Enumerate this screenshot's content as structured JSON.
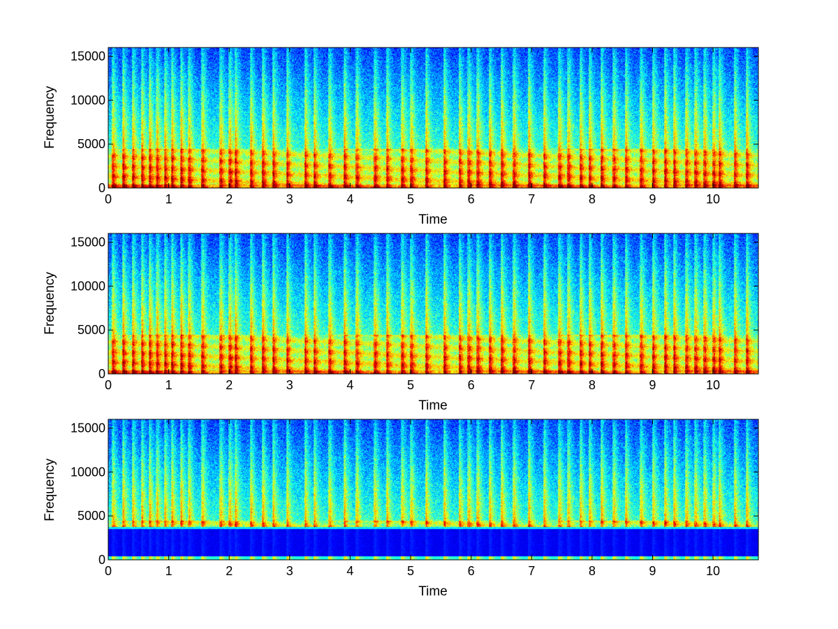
{
  "chart_data": [
    {
      "type": "heatmap",
      "subtype": "spectrogram",
      "colormap": "jet",
      "title": "",
      "xlabel": "Time",
      "ylabel": "Frequency",
      "xlim": [
        0,
        10.75
      ],
      "ylim": [
        0,
        16000
      ],
      "xticks": [
        0,
        1,
        2,
        3,
        4,
        5,
        6,
        7,
        8,
        9,
        10
      ],
      "xtick_labels": [
        "0",
        "1",
        "2",
        "3",
        "4",
        "5",
        "6",
        "7",
        "8",
        "9",
        "10"
      ],
      "yticks": [
        0,
        5000,
        10000,
        15000
      ],
      "ytick_labels": [
        "0",
        "5000",
        "10000",
        "15000"
      ],
      "grid": false,
      "legend": "none",
      "low_band_suppressed": false,
      "band_cutoff_hz": 0,
      "onsets": [
        0.07,
        0.24,
        0.4,
        0.55,
        0.68,
        0.8,
        0.93,
        1.05,
        1.2,
        1.33,
        1.55,
        1.85,
        2.0,
        2.1,
        2.35,
        2.55,
        2.72,
        2.95,
        3.25,
        3.4,
        3.65,
        3.9,
        4.1,
        4.4,
        4.6,
        4.85,
        5.0,
        5.25,
        5.55,
        5.8,
        5.95,
        6.1,
        6.3,
        6.5,
        6.7,
        6.95,
        7.2,
        7.45,
        7.6,
        7.8,
        7.95,
        8.15,
        8.35,
        8.55,
        8.8,
        9.0,
        9.2,
        9.35,
        9.55,
        9.7,
        9.85,
        10.0,
        10.1,
        10.35,
        10.55
      ]
    },
    {
      "type": "heatmap",
      "subtype": "spectrogram",
      "colormap": "jet",
      "title": "",
      "xlabel": "Time",
      "ylabel": "Frequency",
      "xlim": [
        0,
        10.75
      ],
      "ylim": [
        0,
        16000
      ],
      "xticks": [
        0,
        1,
        2,
        3,
        4,
        5,
        6,
        7,
        8,
        9,
        10
      ],
      "xtick_labels": [
        "0",
        "1",
        "2",
        "3",
        "4",
        "5",
        "6",
        "7",
        "8",
        "9",
        "10"
      ],
      "yticks": [
        0,
        5000,
        10000,
        15000
      ],
      "ytick_labels": [
        "0",
        "5000",
        "10000",
        "15000"
      ],
      "grid": false,
      "legend": "none",
      "low_band_suppressed": false,
      "band_cutoff_hz": 0,
      "onsets": [
        0.07,
        0.24,
        0.4,
        0.55,
        0.68,
        0.8,
        0.93,
        1.05,
        1.2,
        1.33,
        1.55,
        1.85,
        2.0,
        2.1,
        2.35,
        2.55,
        2.72,
        2.95,
        3.25,
        3.4,
        3.65,
        3.9,
        4.1,
        4.4,
        4.6,
        4.85,
        5.0,
        5.25,
        5.55,
        5.8,
        5.95,
        6.1,
        6.3,
        6.5,
        6.7,
        6.95,
        7.2,
        7.45,
        7.6,
        7.8,
        7.95,
        8.15,
        8.35,
        8.55,
        8.8,
        9.0,
        9.2,
        9.35,
        9.55,
        9.7,
        9.85,
        10.0,
        10.1,
        10.35,
        10.55
      ]
    },
    {
      "type": "heatmap",
      "subtype": "spectrogram",
      "colormap": "jet",
      "title": "",
      "xlabel": "Time",
      "ylabel": "Frequency",
      "xlim": [
        0,
        10.75
      ],
      "ylim": [
        0,
        16000
      ],
      "xticks": [
        0,
        1,
        2,
        3,
        4,
        5,
        6,
        7,
        8,
        9,
        10
      ],
      "xtick_labels": [
        "0",
        "1",
        "2",
        "3",
        "4",
        "5",
        "6",
        "7",
        "8",
        "9",
        "10"
      ],
      "yticks": [
        0,
        5000,
        10000,
        15000
      ],
      "ytick_labels": [
        "0",
        "5000",
        "10000",
        "15000"
      ],
      "grid": false,
      "legend": "none",
      "low_band_suppressed": true,
      "band_cutoff_hz": 3800,
      "onsets": [
        0.07,
        0.24,
        0.4,
        0.55,
        0.68,
        0.8,
        0.93,
        1.05,
        1.2,
        1.33,
        1.55,
        1.85,
        2.0,
        2.1,
        2.35,
        2.55,
        2.72,
        2.95,
        3.25,
        3.4,
        3.65,
        3.9,
        4.1,
        4.4,
        4.6,
        4.85,
        5.0,
        5.25,
        5.55,
        5.8,
        5.95,
        6.1,
        6.3,
        6.5,
        6.7,
        6.95,
        7.2,
        7.45,
        7.6,
        7.8,
        7.95,
        8.15,
        8.35,
        8.55,
        8.8,
        9.0,
        9.2,
        9.35,
        9.55,
        9.7,
        9.85,
        10.0,
        10.1,
        10.35,
        10.55
      ]
    }
  ]
}
